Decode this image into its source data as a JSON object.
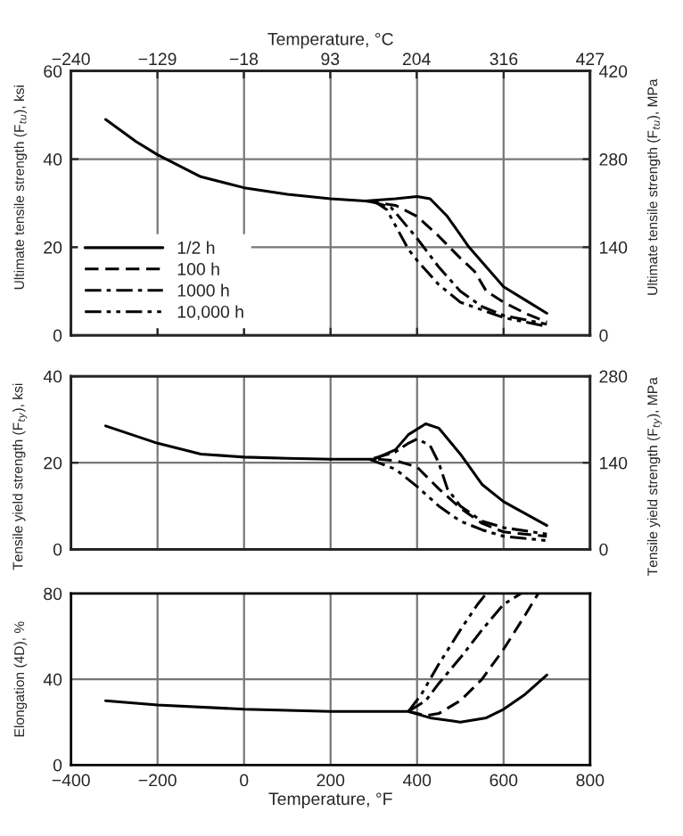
{
  "chart_data": [
    {
      "type": "line",
      "ylabel": "Ultimate tensile strength (F$_{tu}$), ksi",
      "y2label": "Ultimate tensile strength (F$_{tu}$), MPa",
      "x2label": "Temperature, °C",
      "xlim": [
        -400,
        800
      ],
      "xticks": [
        {
          "value": -400,
          "label": null
        },
        {
          "value": -200,
          "label": null
        },
        {
          "value": 0,
          "label": null
        },
        {
          "value": 200,
          "label": null
        },
        {
          "value": 400,
          "label": null
        },
        {
          "value": 600,
          "label": null
        },
        {
          "value": 800,
          "label": null
        }
      ],
      "x2lim": [
        -240,
        427
      ],
      "x2ticks": [
        {
          "value": -240,
          "label": "−240"
        },
        {
          "value": -129,
          "label": "−129"
        },
        {
          "value": -18,
          "label": "−18"
        },
        93,
        204,
        316,
        427
      ],
      "ylim": [
        0,
        60
      ],
      "yticks": [
        0,
        20,
        40,
        60
      ],
      "y2lim": [
        0,
        420
      ],
      "y2ticks": [
        0,
        140,
        280,
        420
      ],
      "tick_labels": "y",
      "grid": true,
      "legend": "bottom left",
      "series": [
        {
          "name": "1/2 h",
          "color": "#000000",
          "line_style": "solid",
          "x": [
            -320,
            -250,
            -200,
            -100,
            0,
            100,
            200,
            280,
            350,
            400,
            430,
            470,
            520,
            600,
            650,
            700
          ],
          "values": [
            49,
            44,
            41,
            36,
            33.5,
            32,
            31,
            30.5,
            31,
            31.5,
            31,
            27,
            20,
            11,
            8,
            5
          ]
        },
        {
          "name": "100 h",
          "color": "#000000",
          "line_style": "dashed",
          "x": [
            280,
            350,
            400,
            450,
            500,
            533,
            560,
            600,
            650,
            700
          ],
          "values": [
            30.5,
            29.5,
            27,
            22.5,
            17.5,
            14.5,
            10,
            7.5,
            5,
            3
          ]
        },
        {
          "name": "1000 h",
          "color": "#000000",
          "line_style": "dashdot",
          "x": [
            290,
            340,
            400,
            450,
            500,
            550,
            600,
            700
          ],
          "values": [
            30.5,
            29,
            22,
            15.5,
            10,
            6.5,
            4.5,
            2.5
          ]
        },
        {
          "name": "10,000 h",
          "color": "#000000",
          "line_style": "dashdotdot",
          "x": [
            300,
            330,
            380,
            400,
            450,
            500,
            600,
            700
          ],
          "values": [
            30.5,
            28.5,
            19.5,
            17,
            11.5,
            7.5,
            4,
            2
          ]
        }
      ]
    },
    {
      "type": "line",
      "ylabel": "Tensile yield strength (F$_{ty}$), ksi",
      "y2label": "Tensile yield strength (F$_{ty}$), MPa",
      "xlim": [
        -400,
        800
      ],
      "xticks": [
        {
          "value": -400,
          "label": null
        },
        {
          "value": -200,
          "label": null
        },
        {
          "value": 0,
          "label": null
        },
        {
          "value": 200,
          "label": null
        },
        {
          "value": 400,
          "label": null
        },
        {
          "value": 600,
          "label": null
        },
        {
          "value": 800,
          "label": null
        }
      ],
      "ylim": [
        0,
        40
      ],
      "yticks": [
        0,
        20,
        40
      ],
      "y2lim": [
        0,
        280
      ],
      "y2ticks": [
        0,
        140,
        280
      ],
      "tick_labels": "y",
      "grid": true,
      "series": [
        {
          "color": "#000000",
          "line_style": "solid",
          "x": [
            -320,
            -200,
            -100,
            0,
            100,
            200,
            300,
            350,
            380,
            420,
            450,
            500,
            550,
            600,
            700
          ],
          "values": [
            28.5,
            24.5,
            22,
            21.3,
            21,
            20.8,
            20.8,
            23,
            26.5,
            29,
            28,
            22,
            15,
            11,
            5.5
          ]
        },
        {
          "color": "#000000",
          "line_style": "dashdot",
          "x": [
            300,
            350,
            380,
            400,
            430,
            450,
            470,
            500,
            550,
            600,
            700
          ],
          "values": [
            21,
            22.5,
            24.5,
            25.5,
            24,
            20,
            14,
            10,
            6.5,
            5,
            3.5
          ]
        },
        {
          "color": "#000000",
          "line_style": "dashed",
          "x": [
            310,
            350,
            400,
            450,
            500,
            550,
            600,
            700
          ],
          "values": [
            20.8,
            20.5,
            19,
            14,
            9.5,
            6,
            4,
            3
          ]
        },
        {
          "color": "#000000",
          "line_style": "dashdotdot",
          "x": [
            290,
            350,
            400,
            450,
            500,
            550,
            600,
            700
          ],
          "values": [
            20.8,
            18.5,
            14.5,
            10,
            6.5,
            4.5,
            3,
            2
          ]
        }
      ]
    },
    {
      "type": "line",
      "ylabel": "Elongation (4D), %",
      "xlabel": "Temperature, °F",
      "xlim": [
        -400,
        800
      ],
      "xticks": [
        {
          "value": -400,
          "label": "−400"
        },
        {
          "value": -200,
          "label": "−200"
        },
        0,
        200,
        400,
        600,
        800
      ],
      "ylim": [
        0,
        80
      ],
      "yticks": [
        0,
        40,
        80
      ],
      "grid": true,
      "series": [
        {
          "color": "#000000",
          "line_style": "solid",
          "x": [
            -320,
            -200,
            0,
            200,
            380,
            430,
            500,
            560,
            600,
            650,
            700
          ],
          "values": [
            30,
            28,
            26,
            25,
            25,
            22,
            20,
            22,
            26,
            33,
            42
          ]
        },
        {
          "color": "#000000",
          "line_style": "dashed",
          "x": [
            380,
            420,
            450,
            500,
            550,
            600,
            650,
            680
          ],
          "values": [
            25,
            23,
            24,
            30,
            40,
            54,
            70,
            80
          ]
        },
        {
          "color": "#000000",
          "line_style": "dashdot",
          "x": [
            380,
            420,
            450,
            500,
            550,
            600,
            640
          ],
          "values": [
            25,
            30,
            38,
            50,
            63,
            75,
            80
          ]
        },
        {
          "color": "#000000",
          "line_style": "dashdotdot",
          "x": [
            380,
            410,
            450,
            500,
            540,
            560
          ],
          "values": [
            25,
            33,
            47,
            63,
            75,
            80
          ]
        }
      ]
    }
  ]
}
